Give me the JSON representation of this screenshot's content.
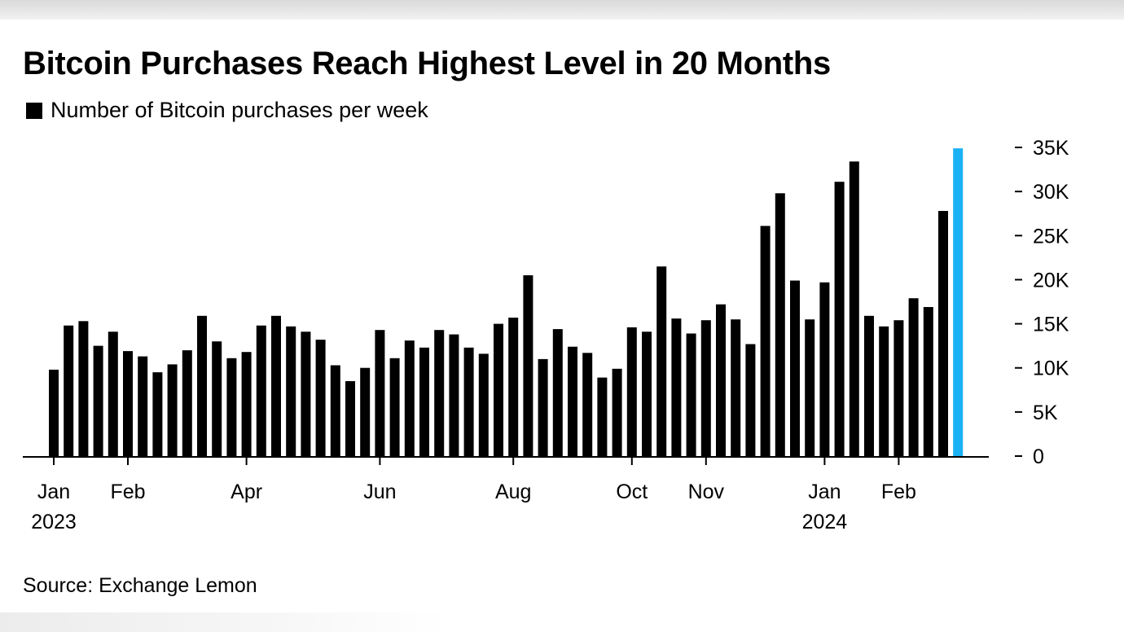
{
  "title": "Bitcoin Purchases Reach Highest Level in 20 Months",
  "legend_label": "Number of Bitcoin purchases per week",
  "source": "Source: Exchange Lemon",
  "colors": {
    "bar": "#000000",
    "highlight_bar": "#1ab2f5",
    "axis": "#000000"
  },
  "chart_data": {
    "type": "bar",
    "title": "Bitcoin Purchases Reach Highest Level in 20 Months",
    "y_axis_position": "right",
    "ylim": [
      0,
      35000
    ],
    "y_ticks": [
      {
        "value": 0,
        "label": "0"
      },
      {
        "value": 5000,
        "label": "5K"
      },
      {
        "value": 10000,
        "label": "10K"
      },
      {
        "value": 15000,
        "label": "15K"
      },
      {
        "value": 20000,
        "label": "20K"
      },
      {
        "value": 25000,
        "label": "25K"
      },
      {
        "value": 30000,
        "label": "30K"
      },
      {
        "value": 35000,
        "label": "35K"
      }
    ],
    "x_ticks": [
      {
        "index": 0,
        "label": "Jan",
        "sublabel": "2023"
      },
      {
        "index": 5,
        "label": "Feb",
        "sublabel": ""
      },
      {
        "index": 13,
        "label": "Apr",
        "sublabel": ""
      },
      {
        "index": 22,
        "label": "Jun",
        "sublabel": ""
      },
      {
        "index": 31,
        "label": "Aug",
        "sublabel": ""
      },
      {
        "index": 39,
        "label": "Oct",
        "sublabel": ""
      },
      {
        "index": 44,
        "label": "Nov",
        "sublabel": ""
      },
      {
        "index": 52,
        "label": "Jan",
        "sublabel": "2024"
      },
      {
        "index": 57,
        "label": "Feb",
        "sublabel": ""
      }
    ],
    "series": [
      {
        "name": "Number of Bitcoin purchases per week",
        "values": [
          9800,
          14800,
          15300,
          12500,
          14100,
          11900,
          11300,
          9500,
          10400,
          12000,
          15900,
          13000,
          11100,
          11800,
          14800,
          15900,
          14700,
          14100,
          13200,
          10300,
          8500,
          10000,
          14300,
          11100,
          13100,
          12300,
          14300,
          13800,
          12300,
          11600,
          15000,
          15700,
          20500,
          11000,
          14400,
          12400,
          11700,
          8900,
          9900,
          14600,
          14100,
          21500,
          15600,
          13900,
          15400,
          17200,
          15500,
          12700,
          26100,
          29800,
          19900,
          15500,
          19700,
          31100,
          33400,
          15900,
          14700,
          15400,
          17900,
          16900,
          27800,
          34900
        ],
        "highlight_index": 61
      }
    ]
  }
}
